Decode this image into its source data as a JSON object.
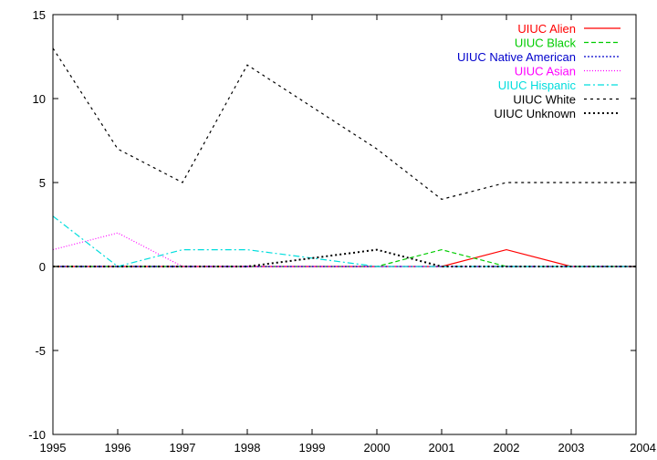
{
  "chart_data": {
    "type": "line",
    "title": "",
    "xlabel": "",
    "ylabel": "",
    "xlim": [
      1995,
      2004
    ],
    "ylim": [
      -10,
      15
    ],
    "x_ticks": [
      "1995",
      "1996",
      "1997",
      "1998",
      "1999",
      "2000",
      "2001",
      "2002",
      "2003",
      "2004"
    ],
    "y_ticks": [
      "15",
      "10",
      "5",
      "0",
      "-5",
      "-10"
    ],
    "grid": false,
    "legend_position": "top-right",
    "x": [
      1995,
      1996,
      1997,
      1998,
      1999,
      2000,
      2001,
      2002,
      2003,
      2004
    ],
    "series": [
      {
        "name": "UIUC Alien",
        "color": "#ff0000",
        "dash": "solid",
        "values": [
          0,
          0,
          0,
          0,
          0,
          0,
          0,
          1,
          0,
          0
        ]
      },
      {
        "name": "UIUC Black",
        "color": "#00cc00",
        "dash": "dashed",
        "values": [
          0,
          0,
          0,
          0,
          0,
          0,
          1,
          0,
          0,
          0
        ]
      },
      {
        "name": "UIUC Native American",
        "color": "#0000cc",
        "dash": "dotted",
        "values": [
          0,
          0,
          0,
          0,
          0,
          0,
          0,
          0,
          0,
          0
        ]
      },
      {
        "name": "UIUC Asian",
        "color": "#ff00ff",
        "dash": "fine-dotted",
        "values": [
          1,
          2,
          0,
          0,
          0,
          0,
          0,
          0,
          0,
          0
        ]
      },
      {
        "name": "UIUC Hispanic",
        "color": "#00dddd",
        "dash": "dash-dot",
        "values": [
          3,
          0,
          1,
          1,
          0.5,
          0,
          0,
          0,
          0,
          0
        ]
      },
      {
        "name": "UIUC White",
        "color": "#000000",
        "dash": "short-dashed",
        "values": [
          13,
          7,
          5,
          12,
          9.5,
          7,
          4,
          5,
          5,
          5
        ]
      },
      {
        "name": "UIUC Unknown",
        "color": "#000000",
        "dash": "heavy-dotted",
        "values": [
          0,
          0,
          0,
          0,
          0.5,
          1,
          0,
          0,
          0,
          0
        ]
      }
    ]
  }
}
